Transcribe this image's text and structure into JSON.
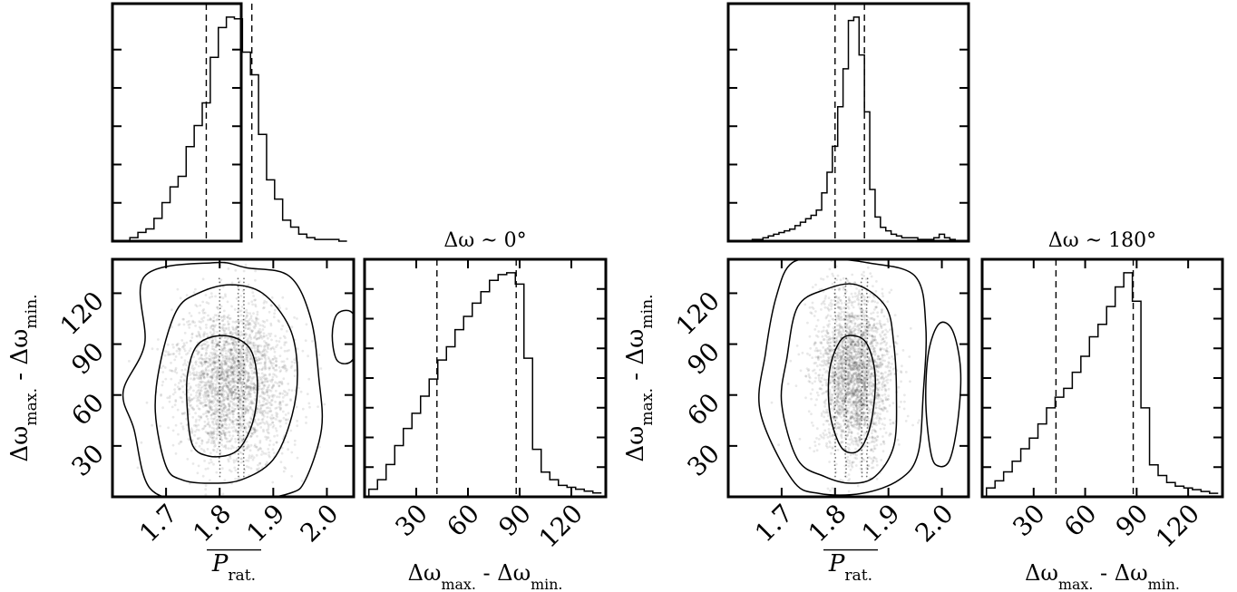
{
  "chart_data": [
    {
      "type": "corner",
      "title": "Δω ~ 0°",
      "ylabel": "Δω_max. - Δω_min.",
      "xlabel_left": "P_rat.",
      "xlabel_right": "Δω_max. - Δω_min.",
      "x_ticks": [
        "1.7",
        "1.8",
        "1.9",
        "2.0"
      ],
      "y_ticks": [
        "30",
        "60",
        "90",
        "120"
      ],
      "dw_ticks": [
        "30",
        "60",
        "90",
        "120"
      ],
      "xlim": [
        1.6,
        2.05
      ],
      "dwlim": [
        0,
        140
      ],
      "hist_top": {
        "bin_width": 0.015,
        "bins": [
          1.64,
          1.655,
          1.67,
          1.685,
          1.7,
          1.715,
          1.73,
          1.745,
          1.76,
          1.775,
          1.79,
          1.805,
          1.82,
          1.835,
          1.85,
          1.865,
          1.88,
          1.895,
          1.91,
          1.925,
          1.94,
          1.955,
          1.97,
          1.985,
          2.0,
          2.015,
          2.03
        ],
        "counts": [
          2,
          5,
          7,
          13,
          22,
          31,
          37,
          54,
          66,
          79,
          105,
          122,
          128,
          127,
          108,
          95,
          61,
          35,
          24,
          12,
          8,
          4,
          2,
          1,
          1,
          1,
          0
        ],
        "quantiles": [
          1.775,
          1.86
        ]
      },
      "hist_right": {
        "bin_width": 5,
        "bins": [
          5,
          10,
          15,
          20,
          25,
          30,
          35,
          40,
          45,
          50,
          55,
          60,
          65,
          70,
          75,
          80,
          85,
          90,
          95,
          100,
          105,
          110,
          115,
          120,
          125,
          130,
          135
        ],
        "counts": [
          4,
          9,
          17,
          27,
          36,
          44,
          53,
          62,
          72,
          79,
          88,
          95,
          102,
          108,
          114,
          117,
          118,
          112,
          73,
          25,
          13,
          9,
          6,
          5,
          4,
          3,
          2
        ],
        "quantiles": [
          42,
          88
        ]
      },
      "density": {
        "core": {
          "x": 1.825,
          "y": 68
        },
        "spread": {
          "x": 0.045,
          "y": 24
        },
        "contours": [
          [
            [
              1.75,
              30
            ],
            [
              1.74,
              50
            ],
            [
              1.74,
              72
            ],
            [
              1.76,
              90
            ],
            [
              1.81,
              95
            ],
            [
              1.855,
              88
            ],
            [
              1.87,
              70
            ],
            [
              1.865,
              48
            ],
            [
              1.845,
              32
            ],
            [
              1.82,
              25
            ],
            [
              1.78,
              24
            ]
          ],
          [
            [
              1.7,
              18
            ],
            [
              1.68,
              50
            ],
            [
              1.69,
              80
            ],
            [
              1.72,
              110
            ],
            [
              1.76,
              120
            ],
            [
              1.82,
              125
            ],
            [
              1.88,
              120
            ],
            [
              1.93,
              100
            ],
            [
              1.945,
              75
            ],
            [
              1.935,
              48
            ],
            [
              1.9,
              22
            ],
            [
              1.84,
              10
            ],
            [
              1.78,
              8
            ],
            [
              1.73,
              10
            ]
          ],
          [
            [
              1.67,
              5
            ],
            [
              1.64,
              40
            ],
            [
              1.62,
              62
            ],
            [
              1.66,
              90
            ],
            [
              1.66,
              130
            ],
            [
              1.79,
              138
            ],
            [
              1.85,
              135
            ],
            [
              1.93,
              130
            ],
            [
              1.97,
              105
            ],
            [
              1.985,
              70
            ],
            [
              1.99,
              40
            ],
            [
              1.96,
              10
            ],
            [
              1.93,
              2
            ],
            [
              1.85,
              -2
            ],
            [
              1.75,
              -2
            ]
          ],
          [
            [
              2.02,
              80
            ],
            [
              2.05,
              82
            ],
            [
              2.05,
              107
            ],
            [
              2.02,
              108
            ],
            [
              2.01,
              95
            ]
          ]
        ],
        "vlines": [
          1.8,
          1.835,
          1.845
        ]
      }
    },
    {
      "type": "corner",
      "title": "Δω ~ 180°",
      "ylabel": "Δω_max. - Δω_min.",
      "xlabel_left": "P_rat.",
      "xlabel_right": "Δω_max. - Δω_min.",
      "x_ticks": [
        "1.7",
        "1.8",
        "1.9",
        "2.0"
      ],
      "y_ticks": [
        "30",
        "60",
        "90",
        "120"
      ],
      "dw_ticks": [
        "30",
        "60",
        "90",
        "120"
      ],
      "xlim": [
        1.6,
        2.05
      ],
      "dwlim": [
        0,
        140
      ],
      "hist_top": {
        "bin_width": 0.01,
        "bins": [
          1.64,
          1.65,
          1.66,
          1.67,
          1.68,
          1.69,
          1.7,
          1.71,
          1.72,
          1.73,
          1.74,
          1.75,
          1.76,
          1.77,
          1.78,
          1.79,
          1.8,
          1.81,
          1.82,
          1.83,
          1.84,
          1.85,
          1.86,
          1.87,
          1.88,
          1.89,
          1.9,
          1.91,
          1.92,
          1.93,
          1.94,
          1.95,
          1.96,
          1.97,
          1.98,
          1.99,
          2.0,
          2.01,
          2.02,
          2.03
        ],
        "counts": [
          0,
          1,
          1,
          2,
          3,
          4,
          5,
          6,
          7,
          9,
          11,
          13,
          15,
          18,
          28,
          40,
          55,
          78,
          100,
          128,
          130,
          108,
          75,
          30,
          14,
          8,
          6,
          4,
          3,
          2,
          2,
          2,
          1,
          1,
          1,
          2,
          4,
          2,
          1,
          0
        ],
        "quantiles": [
          1.8,
          1.855
        ]
      },
      "hist_right": {
        "bin_width": 5,
        "bins": [
          5,
          10,
          15,
          20,
          25,
          30,
          35,
          40,
          45,
          50,
          55,
          60,
          65,
          70,
          75,
          80,
          85,
          90,
          95,
          100,
          105,
          110,
          115,
          120,
          125,
          130,
          135
        ],
        "counts": [
          5,
          9,
          14,
          20,
          27,
          33,
          41,
          50,
          56,
          61,
          70,
          79,
          90,
          97,
          107,
          118,
          126,
          110,
          50,
          18,
          12,
          8,
          6,
          5,
          4,
          3,
          2
        ],
        "quantiles": [
          43,
          88
        ]
      },
      "density": {
        "core": {
          "x": 1.835,
          "y": 72
        },
        "spread": {
          "x": 0.03,
          "y": 25
        },
        "contours": [
          [
            [
              1.81,
              30
            ],
            [
              1.79,
              50
            ],
            [
              1.79,
              75
            ],
            [
              1.81,
              92
            ],
            [
              1.835,
              95
            ],
            [
              1.86,
              90
            ],
            [
              1.875,
              72
            ],
            [
              1.87,
              48
            ],
            [
              1.855,
              32
            ],
            [
              1.835,
              26
            ]
          ],
          [
            [
              1.73,
              22
            ],
            [
              1.7,
              55
            ],
            [
              1.71,
              82
            ],
            [
              1.73,
              112
            ],
            [
              1.78,
              122
            ],
            [
              1.84,
              125
            ],
            [
              1.895,
              112
            ],
            [
              1.91,
              90
            ],
            [
              1.915,
              60
            ],
            [
              1.91,
              30
            ],
            [
              1.875,
              12
            ],
            [
              1.83,
              8
            ],
            [
              1.78,
              12
            ]
          ],
          [
            [
              1.72,
              10
            ],
            [
              1.66,
              50
            ],
            [
              1.67,
              85
            ],
            [
              1.69,
              118
            ],
            [
              1.72,
              138
            ],
            [
              1.79,
              140
            ],
            [
              1.86,
              138
            ],
            [
              1.95,
              130
            ],
            [
              1.97,
              100
            ],
            [
              1.965,
              60
            ],
            [
              1.955,
              25
            ],
            [
              1.92,
              10
            ],
            [
              1.85,
              2
            ],
            [
              1.77,
              2
            ]
          ],
          [
            [
              1.98,
              25
            ],
            [
              1.97,
              55
            ],
            [
              1.975,
              85
            ],
            [
              1.995,
              102
            ],
            [
              2.02,
              98
            ],
            [
              2.035,
              75
            ],
            [
              2.03,
              45
            ],
            [
              2.015,
              22
            ],
            [
              1.995,
              18
            ]
          ]
        ],
        "vlines": [
          1.8,
          1.82,
          1.85,
          1.86
        ]
      }
    }
  ]
}
